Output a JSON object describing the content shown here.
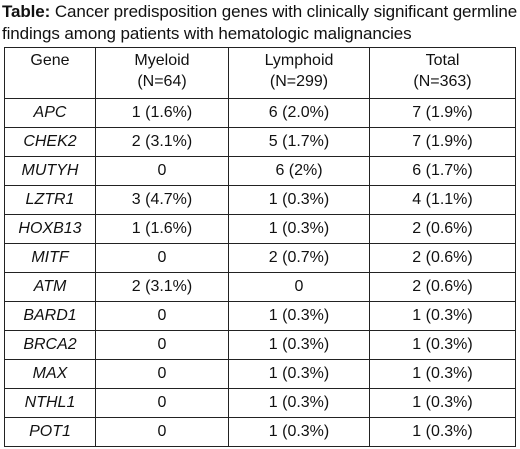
{
  "caption": {
    "label": "Table",
    "separator": ":",
    "text": " Cancer predisposition genes with clinically significant germline findings among patients with hematologic malignancies"
  },
  "table": {
    "headers": [
      {
        "name": "Gene",
        "sub": ""
      },
      {
        "name": "Myeloid",
        "sub": "(N=64)"
      },
      {
        "name": "Lymphoid",
        "sub": "(N=299)"
      },
      {
        "name": "Total",
        "sub": "(N=363)"
      }
    ],
    "rows": [
      {
        "gene": "APC",
        "myeloid": "1 (1.6%)",
        "lymphoid": "6 (2.0%)",
        "total": "7 (1.9%)"
      },
      {
        "gene": "CHEK2",
        "myeloid": "2 (3.1%)",
        "lymphoid": "5 (1.7%)",
        "total": "7 (1.9%)"
      },
      {
        "gene": "MUTYH",
        "myeloid": "0",
        "lymphoid": "6 (2%)",
        "total": "6 (1.7%)"
      },
      {
        "gene": "LZTR1",
        "myeloid": "3 (4.7%)",
        "lymphoid": "1 (0.3%)",
        "total": "4 (1.1%)"
      },
      {
        "gene": "HOXB13",
        "myeloid": "1 (1.6%)",
        "lymphoid": "1 (0.3%)",
        "total": "2 (0.6%)"
      },
      {
        "gene": "MITF",
        "myeloid": "0",
        "lymphoid": "2 (0.7%)",
        "total": "2 (0.6%)"
      },
      {
        "gene": "ATM",
        "myeloid": "2 (3.1%)",
        "lymphoid": "0",
        "total": "2 (0.6%)"
      },
      {
        "gene": "BARD1",
        "myeloid": "0",
        "lymphoid": "1 (0.3%)",
        "total": "1 (0.3%)"
      },
      {
        "gene": "BRCA2",
        "myeloid": "0",
        "lymphoid": "1 (0.3%)",
        "total": "1 (0.3%)"
      },
      {
        "gene": "MAX",
        "myeloid": "0",
        "lymphoid": "1 (0.3%)",
        "total": "1 (0.3%)"
      },
      {
        "gene": "NTHL1",
        "myeloid": "0",
        "lymphoid": "1 (0.3%)",
        "total": "1 (0.3%)"
      },
      {
        "gene": "POT1",
        "myeloid": "0",
        "lymphoid": "1 (0.3%)",
        "total": "1 (0.3%)"
      }
    ]
  }
}
